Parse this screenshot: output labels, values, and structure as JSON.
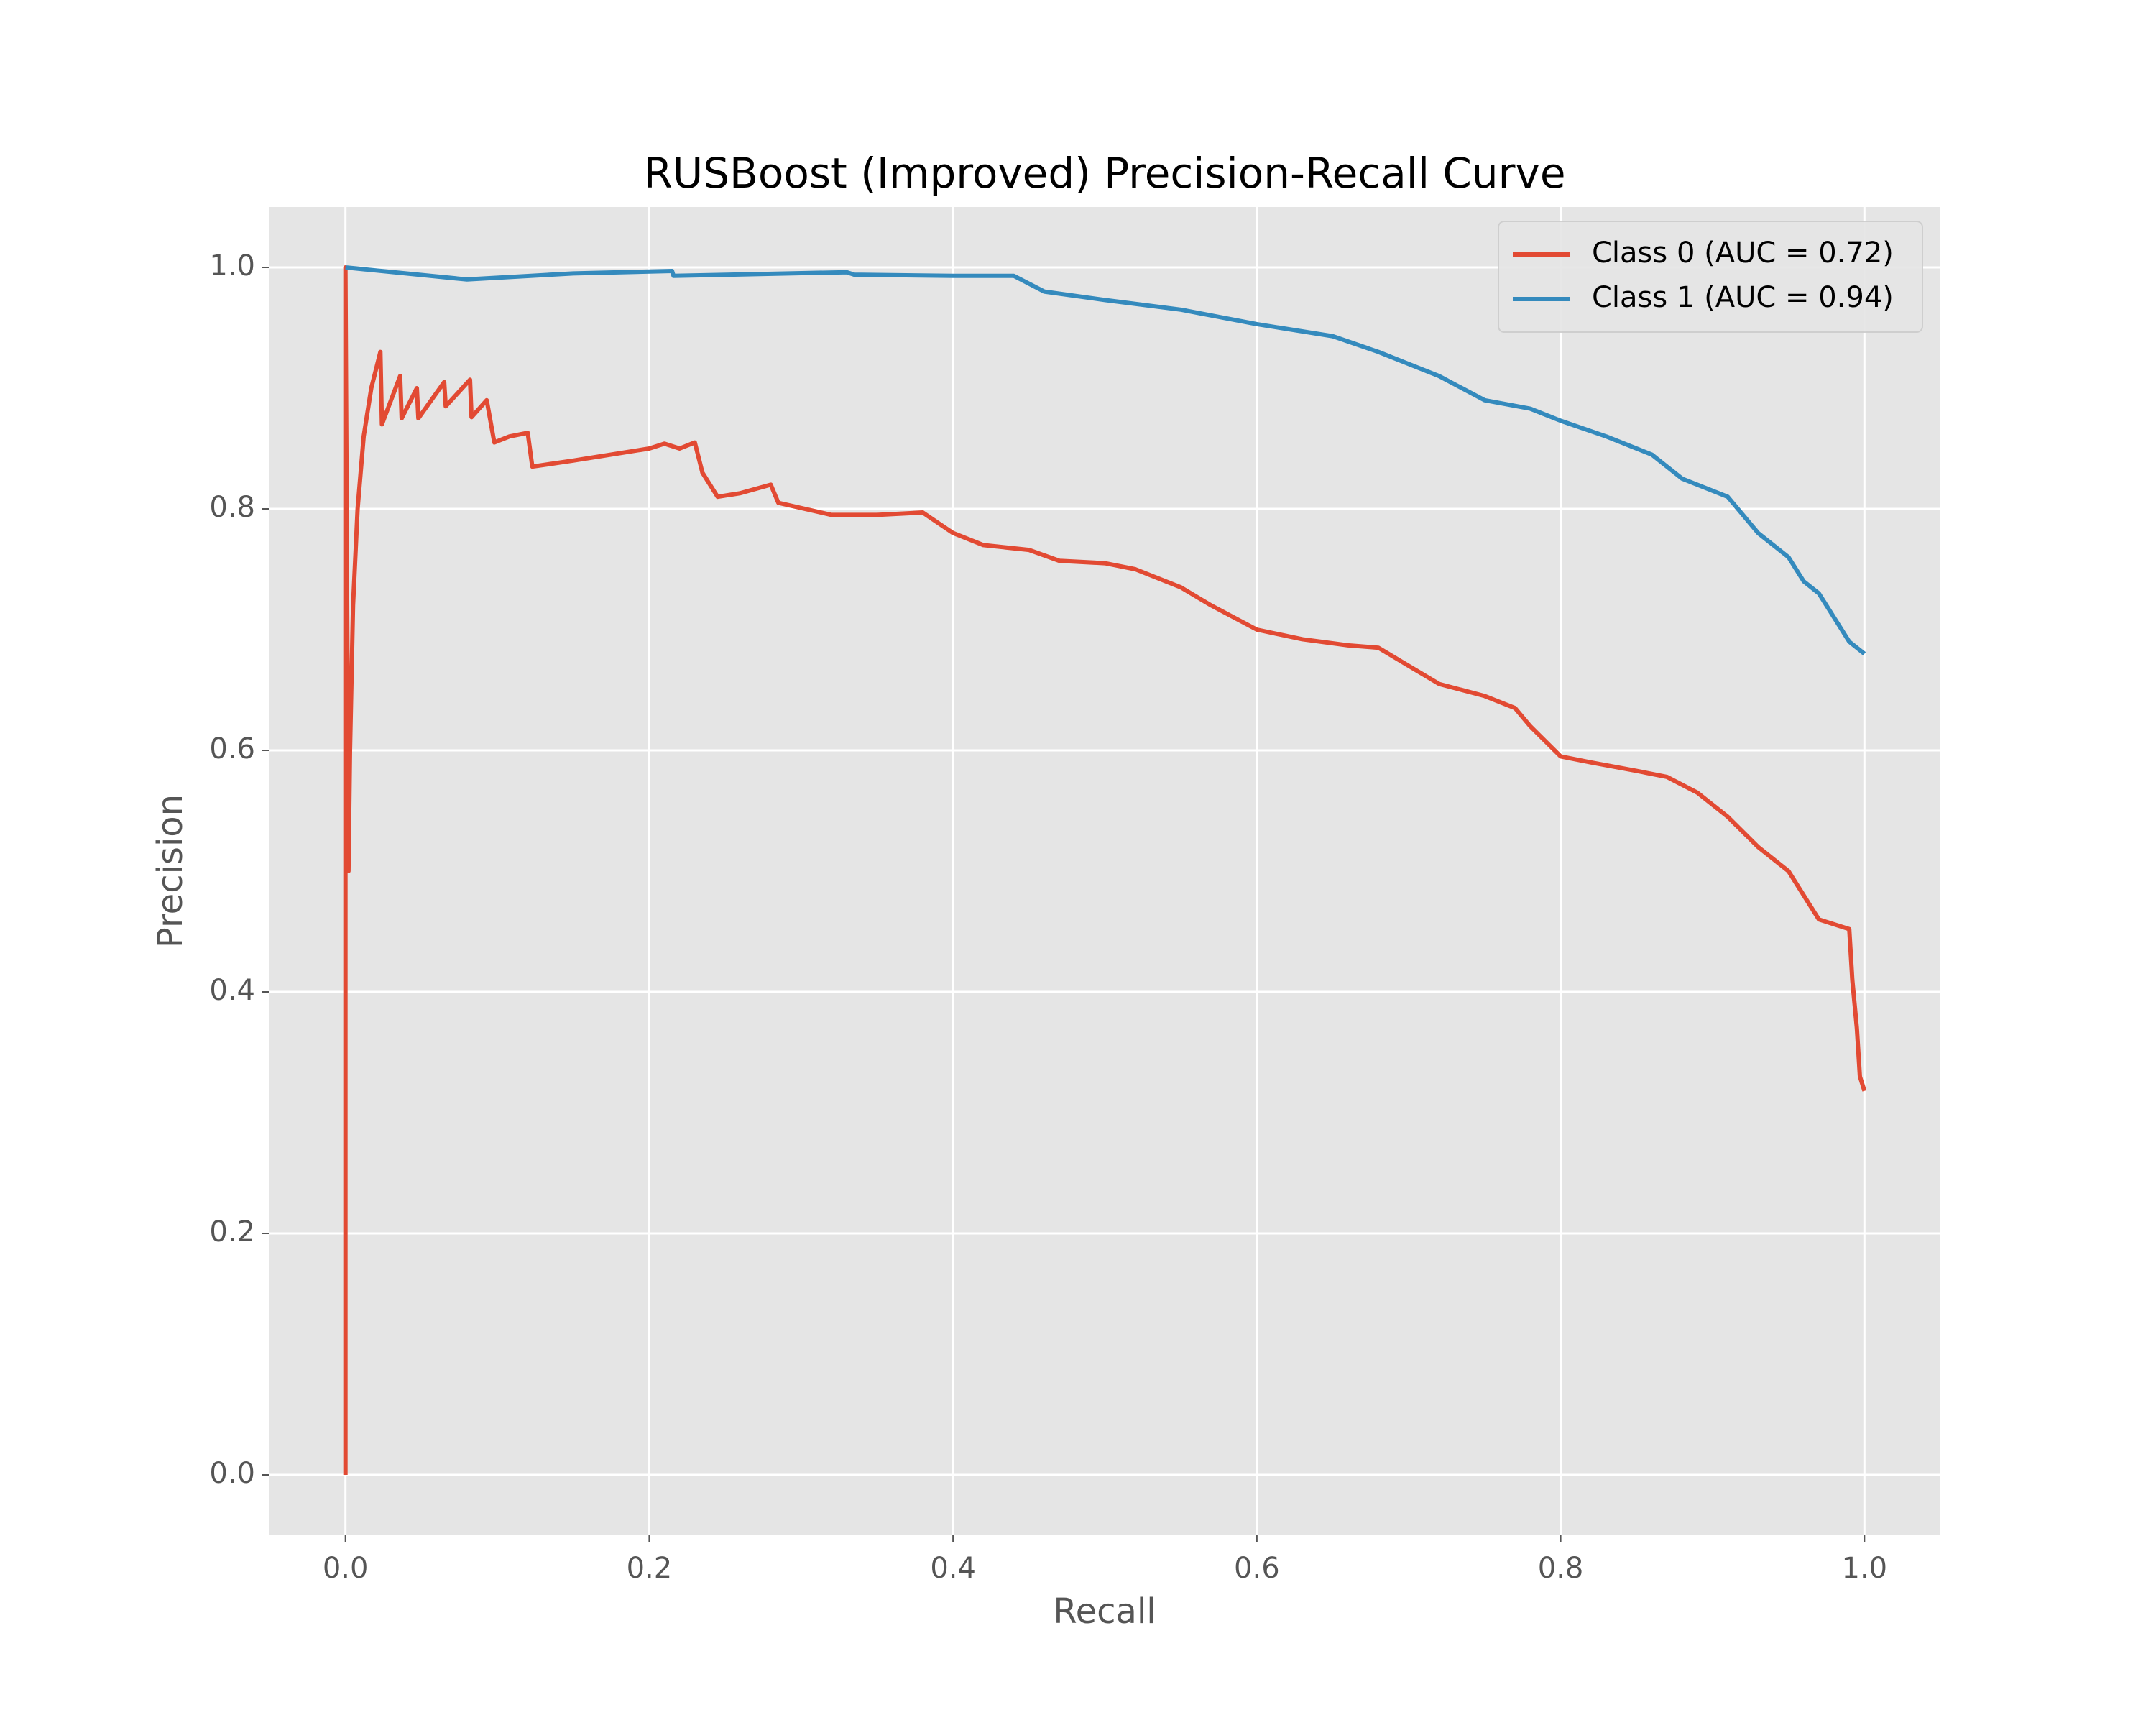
{
  "chart_data": {
    "type": "line",
    "title": "RUSBoost (Improved) Precision-Recall Curve",
    "x_label": "Recall",
    "y_label": "Precision",
    "xlim": [
      -0.05,
      1.05
    ],
    "ylim": [
      -0.05,
      1.05
    ],
    "xticks": [
      {
        "value": 0,
        "label": "0.0"
      },
      0.2,
      0.4,
      0.6,
      0.8,
      {
        "value": 1,
        "label": "1.0"
      }
    ],
    "yticks": [
      {
        "value": 0,
        "label": "0.0"
      },
      0.2,
      0.4,
      0.6,
      0.8,
      {
        "value": 1,
        "label": "1.0"
      }
    ],
    "grid": true,
    "legend": "upper right",
    "series": [
      {
        "name": "Class 0 (AUC = 0.72)",
        "color": "#e24a33",
        "x": [
          0,
          0,
          0.002,
          0.003,
          0.005,
          0.008,
          0.012,
          0.017,
          0.023,
          0.024,
          0.036,
          0.037,
          0.047,
          0.048,
          0.065,
          0.066,
          0.082,
          0.083,
          0.093,
          0.098,
          0.108,
          0.12,
          0.123,
          0.15,
          0.2,
          0.21,
          0.22,
          0.23,
          0.235,
          0.245,
          0.26,
          0.28,
          0.285,
          0.32,
          0.35,
          0.38,
          0.4,
          0.42,
          0.45,
          0.47,
          0.5,
          0.52,
          0.55,
          0.57,
          0.6,
          0.63,
          0.66,
          0.68,
          0.7,
          0.72,
          0.75,
          0.77,
          0.78,
          0.8,
          0.82,
          0.85,
          0.87,
          0.89,
          0.91,
          0.93,
          0.95,
          0.97,
          0.99,
          0.992,
          0.995,
          0.997,
          1.0
        ],
        "values": [
          0,
          1.0,
          0.5,
          0.6,
          0.72,
          0.8,
          0.86,
          0.9,
          0.93,
          0.87,
          0.91,
          0.875,
          0.9,
          0.875,
          0.905,
          0.885,
          0.907,
          0.876,
          0.89,
          0.855,
          0.86,
          0.863,
          0.835,
          0.84,
          0.85,
          0.854,
          0.85,
          0.855,
          0.83,
          0.81,
          0.813,
          0.82,
          0.805,
          0.795,
          0.795,
          0.797,
          0.78,
          0.77,
          0.766,
          0.757,
          0.755,
          0.75,
          0.735,
          0.72,
          0.7,
          0.692,
          0.687,
          0.685,
          0.67,
          0.655,
          0.645,
          0.635,
          0.62,
          0.595,
          0.59,
          0.583,
          0.578,
          0.565,
          0.545,
          0.52,
          0.5,
          0.46,
          0.452,
          0.41,
          0.37,
          0.33,
          0.318
        ]
      },
      {
        "name": "Class 1 (AUC = 0.94)",
        "color": "#348abd",
        "x": [
          0,
          0.08,
          0.15,
          0.215,
          0.216,
          0.33,
          0.335,
          0.4,
          0.44,
          0.46,
          0.5,
          0.55,
          0.6,
          0.65,
          0.68,
          0.72,
          0.75,
          0.78,
          0.8,
          0.83,
          0.86,
          0.88,
          0.91,
          0.93,
          0.95,
          0.96,
          0.97,
          0.98,
          0.99,
          1.0
        ],
        "values": [
          1.0,
          0.99,
          0.995,
          0.997,
          0.993,
          0.996,
          0.994,
          0.993,
          0.993,
          0.98,
          0.973,
          0.965,
          0.953,
          0.943,
          0.93,
          0.91,
          0.89,
          0.883,
          0.873,
          0.86,
          0.845,
          0.825,
          0.81,
          0.78,
          0.76,
          0.74,
          0.73,
          0.71,
          0.69,
          0.68
        ]
      }
    ]
  }
}
